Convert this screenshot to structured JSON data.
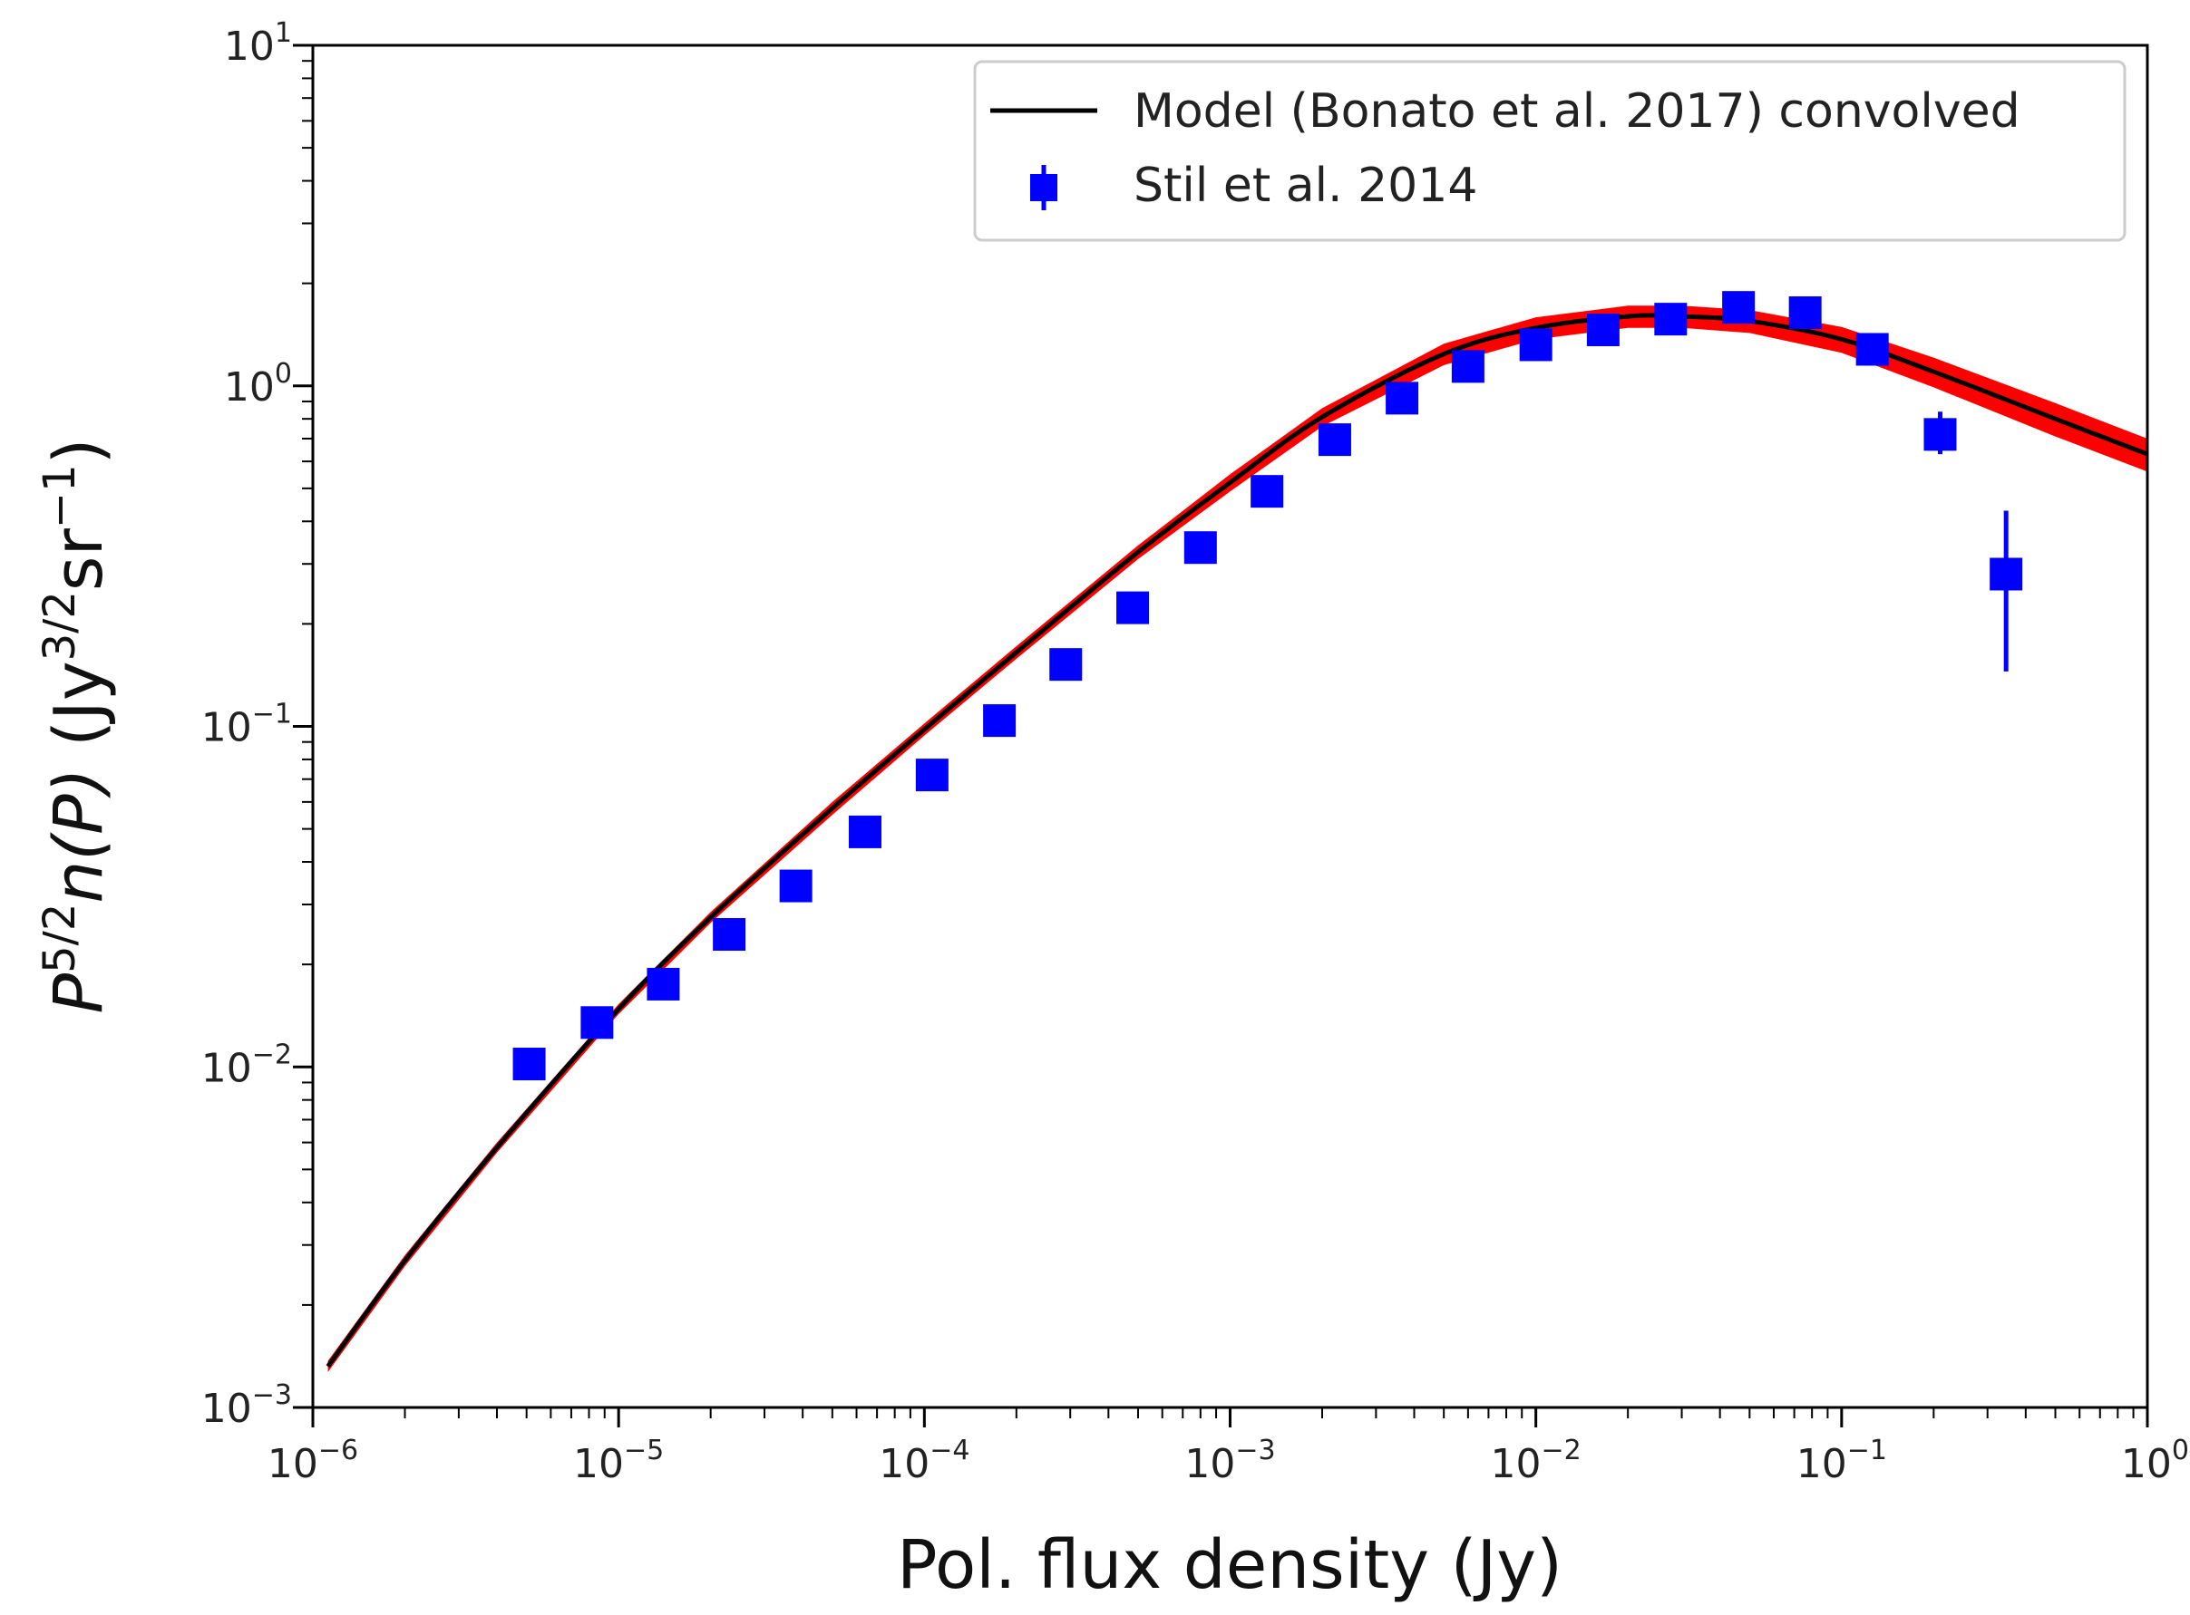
{
  "chart_data": {
    "type": "line",
    "scale": {
      "x": "log",
      "y": "log"
    },
    "xlim": [
      1e-06,
      1
    ],
    "ylim": [
      0.001,
      10
    ],
    "xlabel": "Pol. flux density (Jy)",
    "ylabel": {
      "P": "P",
      "power": "5/2",
      "func": "n(P)",
      "units_open": " (Jy",
      "units_power": "3/2",
      "units_mid": "sr",
      "units_power2": "−1",
      "units_close": ")"
    },
    "xticks": [
      {
        "value": 1e-06,
        "base": "10",
        "exp": "−6"
      },
      {
        "value": 1e-05,
        "base": "10",
        "exp": "−5"
      },
      {
        "value": 0.0001,
        "base": "10",
        "exp": "−4"
      },
      {
        "value": 0.001,
        "base": "10",
        "exp": "−3"
      },
      {
        "value": 0.01,
        "base": "10",
        "exp": "−2"
      },
      {
        "value": 0.1,
        "base": "10",
        "exp": "−1"
      },
      {
        "value": 1,
        "base": "10",
        "exp": "0"
      }
    ],
    "yticks": [
      {
        "value": 0.001,
        "base": "10",
        "exp": "−3"
      },
      {
        "value": 0.01,
        "base": "10",
        "exp": "−2"
      },
      {
        "value": 0.1,
        "base": "10",
        "exp": "−1"
      },
      {
        "value": 1,
        "base": "10",
        "exp": "0"
      },
      {
        "value": 10,
        "base": "10",
        "exp": "1"
      }
    ],
    "series": [
      {
        "name": "Model (Bonato et al. 2017) convolved",
        "kind": "line",
        "color": "#000000",
        "band_color": "#ff0000",
        "x": [
          1.12e-06,
          2e-06,
          4e-06,
          1e-05,
          2e-05,
          5e-05,
          0.0001,
          0.0002,
          0.0005,
          0.001,
          0.002,
          0.005,
          0.01,
          0.02,
          0.03,
          0.05,
          0.1,
          0.2,
          0.5,
          1
        ],
        "y": [
          0.00132,
          0.0027,
          0.0058,
          0.0148,
          0.0275,
          0.0575,
          0.098,
          0.165,
          0.325,
          0.52,
          0.81,
          1.24,
          1.48,
          1.6,
          1.6,
          1.55,
          1.37,
          1.1,
          0.8,
          0.63
        ],
        "band_lower": [
          0.00127,
          0.0026,
          0.0056,
          0.0143,
          0.0265,
          0.055,
          0.094,
          0.158,
          0.31,
          0.49,
          0.76,
          1.15,
          1.37,
          1.48,
          1.48,
          1.43,
          1.25,
          0.99,
          0.71,
          0.56
        ],
        "band_upper": [
          0.00137,
          0.0028,
          0.006,
          0.0153,
          0.0285,
          0.06,
          0.102,
          0.172,
          0.34,
          0.55,
          0.86,
          1.33,
          1.59,
          1.72,
          1.72,
          1.67,
          1.49,
          1.21,
          0.89,
          0.7
        ]
      },
      {
        "name": "Stil et al. 2014",
        "kind": "errorbar",
        "color": "#0000ff",
        "x": [
          5.1e-06,
          8.5e-06,
          1.4e-05,
          2.3e-05,
          3.8e-05,
          6.4e-05,
          0.000106,
          0.000176,
          0.00029,
          0.00048,
          0.0008,
          0.00132,
          0.0022,
          0.00365,
          0.006,
          0.01,
          0.0166,
          0.0276,
          0.046,
          0.076,
          0.126,
          0.21,
          0.345
        ],
        "y": [
          0.0102,
          0.0135,
          0.0175,
          0.0245,
          0.034,
          0.049,
          0.072,
          0.104,
          0.152,
          0.223,
          0.335,
          0.49,
          0.695,
          0.92,
          1.14,
          1.32,
          1.46,
          1.57,
          1.7,
          1.64,
          1.28,
          0.72,
          0.28
        ],
        "yerr_lower": [
          0,
          0,
          0,
          0,
          0,
          0,
          0,
          0,
          0,
          0,
          0,
          0,
          0,
          0,
          0,
          0,
          0,
          0,
          0,
          0,
          0,
          0.09,
          0.135
        ],
        "yerr_upper": [
          0,
          0,
          0,
          0,
          0,
          0,
          0,
          0,
          0,
          0,
          0,
          0,
          0,
          0,
          0,
          0,
          0,
          0,
          0,
          0,
          0,
          0.12,
          0.15
        ]
      }
    ],
    "legend": {
      "position": "top-right",
      "entries": [
        {
          "label": "Model (Bonato et al. 2017) convolved",
          "marker": "line",
          "color": "#000000"
        },
        {
          "label": "Stil et al. 2014",
          "marker": "square-errorbar",
          "color": "#0000ff"
        }
      ]
    }
  }
}
